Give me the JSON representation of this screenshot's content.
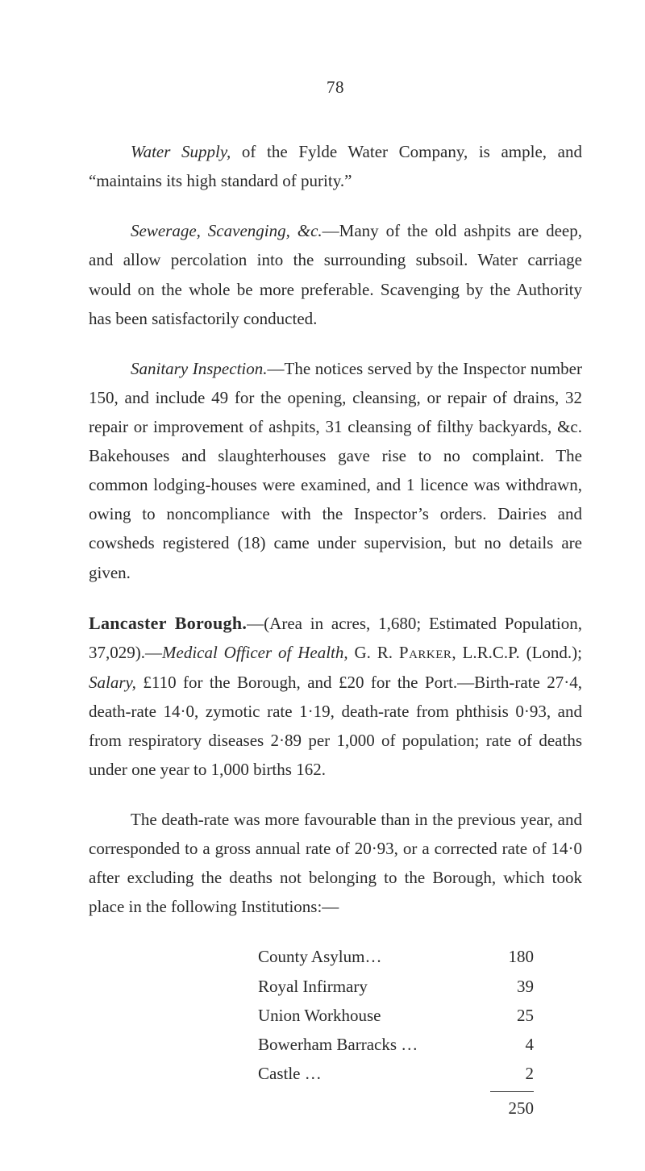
{
  "page_number": "78",
  "p1": "Water Supply, of the Fylde Water Company, is ample, and “maintains its high standard of purity.”",
  "p2": "Sewerage, Scavenging, &c.—Many of the old ashpits are deep, and allow percolation into the surrounding subsoil. Water carriage would on the whole be more preferable. Scavenging by the Authority has been satisfactorily con­ducted.",
  "p3": "Sanitary Inspection.—The notices served by the Inspector number 150, and include 49 for the opening, cleansing, or repair of drains, 32 repair or improvement of ashpits, 31 cleansing of filthy backyards, &c. Bakehouses and slaughter­houses gave rise to no complaint. The common lodging-houses were examined, and 1 licence was withdrawn, owing to non­compliance with the Inspector’s orders. Dairies and cowsheds registered (18) came under supervision, but no details are given.",
  "p4_lead": "Lancaster Borough.",
  "p4_rest": "—(Area in acres, 1,680; Estimated Population, 37,029).—Medical Officer of Health, G. R. Parker, L.R.C.P. (Lond.); Salary, £110 for the Borough, and £20 for the Port.—Birth-rate 27·4, death-rate 14·0, zymotic rate 1·19, death-rate from phthisis 0·93, and from respiratory diseases 2·89 per 1,000 of population; rate of deaths under one year to 1,000 births 162.",
  "p5": "The death-rate was more favourable than in the previous year, and corresponded to a gross annual rate of 20·93, or a corrected rate of 14·0 after excluding the deaths not belonging to the Borough, which took place in the following Institutions:—",
  "rows": [
    {
      "label": "County Asylum…",
      "value": "180"
    },
    {
      "label": "Royal Infirmary",
      "value": "39"
    },
    {
      "label": "Union Workhouse",
      "value": "25"
    },
    {
      "label": "Bowerham Barracks …",
      "value": "4"
    },
    {
      "label": "Castle …",
      "value": "2"
    }
  ],
  "total": "250"
}
